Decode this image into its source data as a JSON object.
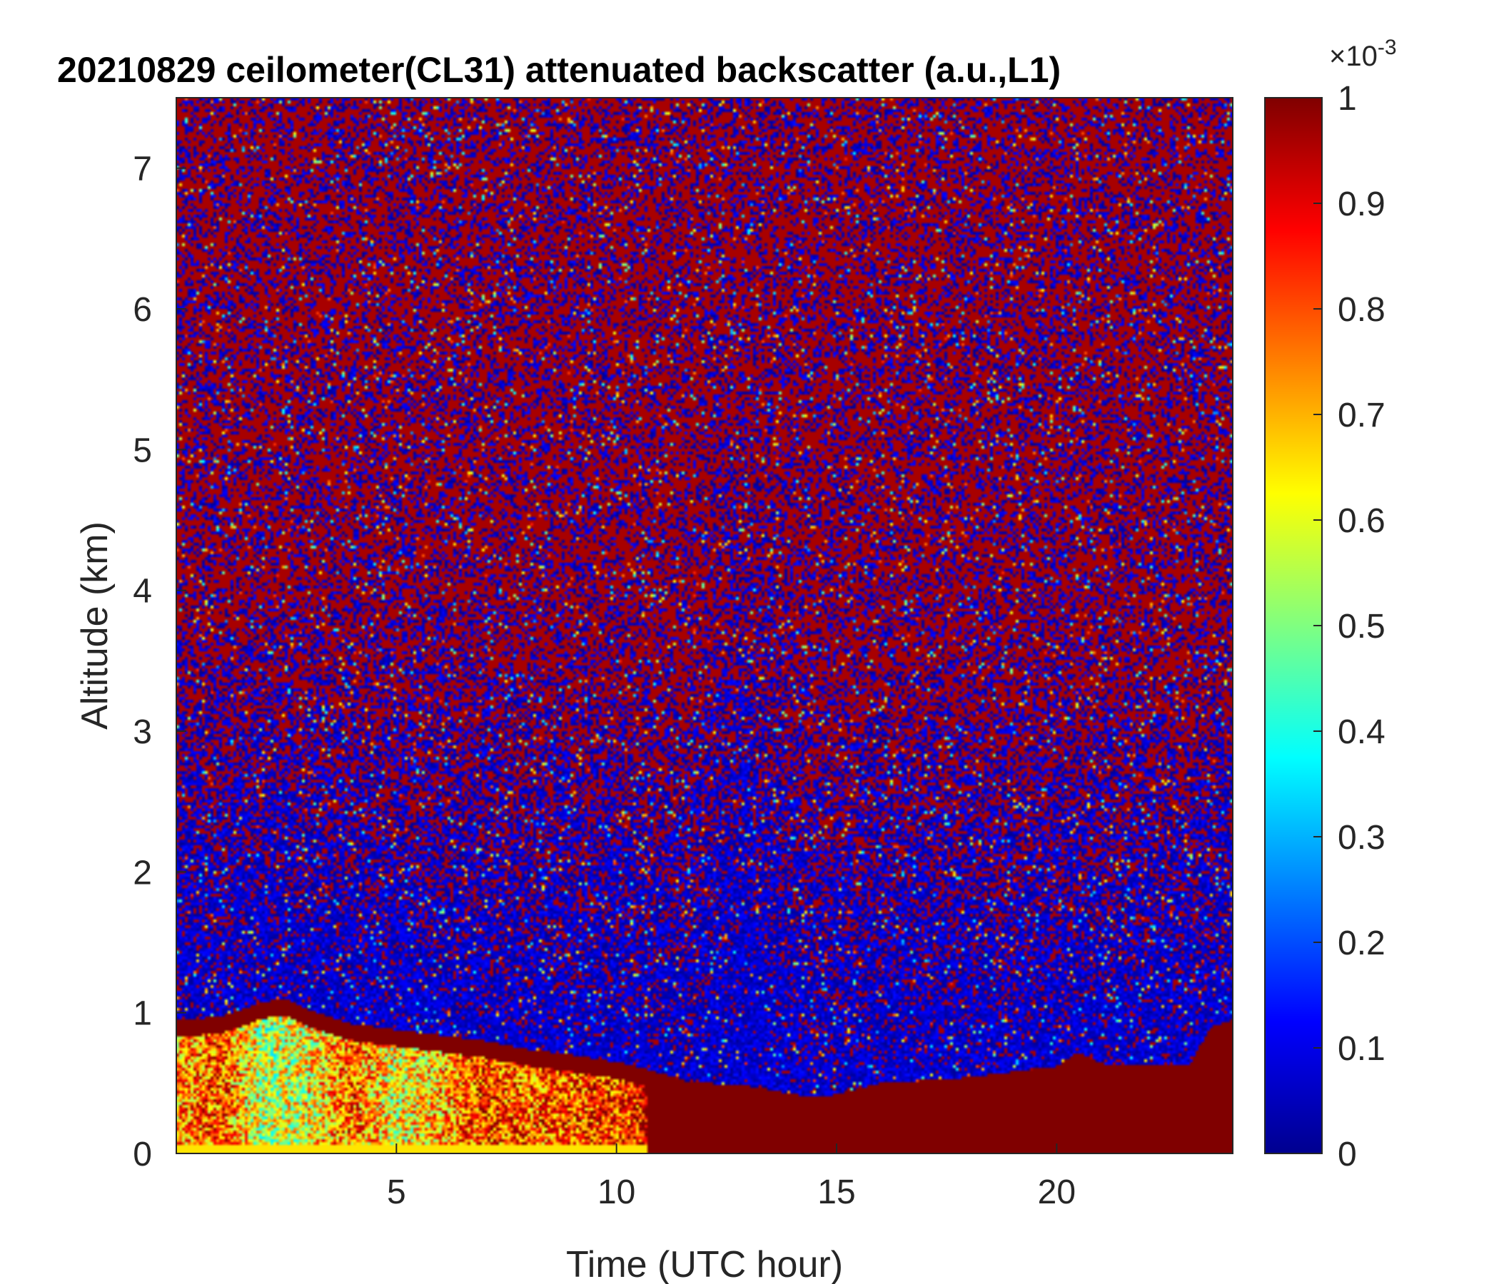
{
  "chart_data": {
    "type": "heatmap",
    "title": "20210829 ceilometer(CL31) attenuated backscatter (a.u.,L1)",
    "xlabel": "Time (UTC hour)",
    "ylabel": "Altitude (km)",
    "xlim": [
      0,
      24
    ],
    "ylim": [
      0,
      7.5
    ],
    "xticks": [
      5,
      10,
      15,
      20
    ],
    "yticks": [
      0,
      1,
      2,
      3,
      4,
      5,
      6,
      7
    ],
    "colorbar": {
      "colormap": "jet",
      "range": [
        0,
        0.001
      ],
      "ticks": [
        0,
        0.1,
        0.2,
        0.3,
        0.4,
        0.5,
        0.6,
        0.7,
        0.8,
        0.9,
        1
      ],
      "tick_labels": [
        "0",
        "0.1",
        "0.2",
        "0.3",
        "0.4",
        "0.5",
        "0.6",
        "0.7",
        "0.8",
        "0.9",
        "1"
      ],
      "exponent_base": "×10",
      "exponent": "-3"
    },
    "boundary_layer_top_km": {
      "x": [
        0,
        1,
        2,
        2.5,
        3,
        4,
        5,
        6,
        7,
        8,
        9,
        10,
        10.7,
        11.5,
        12,
        13,
        14,
        14.7,
        15,
        16,
        17,
        18,
        19,
        20,
        20.5,
        21,
        22,
        23,
        23.5,
        24
      ],
      "y": [
        0.95,
        0.97,
        1.08,
        1.1,
        1.02,
        0.92,
        0.88,
        0.84,
        0.8,
        0.74,
        0.7,
        0.65,
        0.6,
        0.52,
        0.5,
        0.48,
        0.42,
        0.4,
        0.42,
        0.5,
        0.52,
        0.54,
        0.58,
        0.62,
        0.72,
        0.64,
        0.62,
        0.62,
        0.9,
        0.95
      ]
    },
    "low_layer_strength": {
      "x": [
        0,
        1,
        2,
        3,
        4,
        5,
        6,
        7,
        8,
        9,
        10,
        10.5,
        10.7,
        24
      ],
      "y": [
        0.72,
        0.8,
        0.55,
        0.62,
        0.78,
        0.6,
        0.7,
        0.82,
        0.78,
        0.8,
        0.82,
        0.85,
        1,
        1
      ]
    },
    "quiet_column_x": [
      11.5,
      14.5
    ],
    "grid": false,
    "legend": "none"
  }
}
